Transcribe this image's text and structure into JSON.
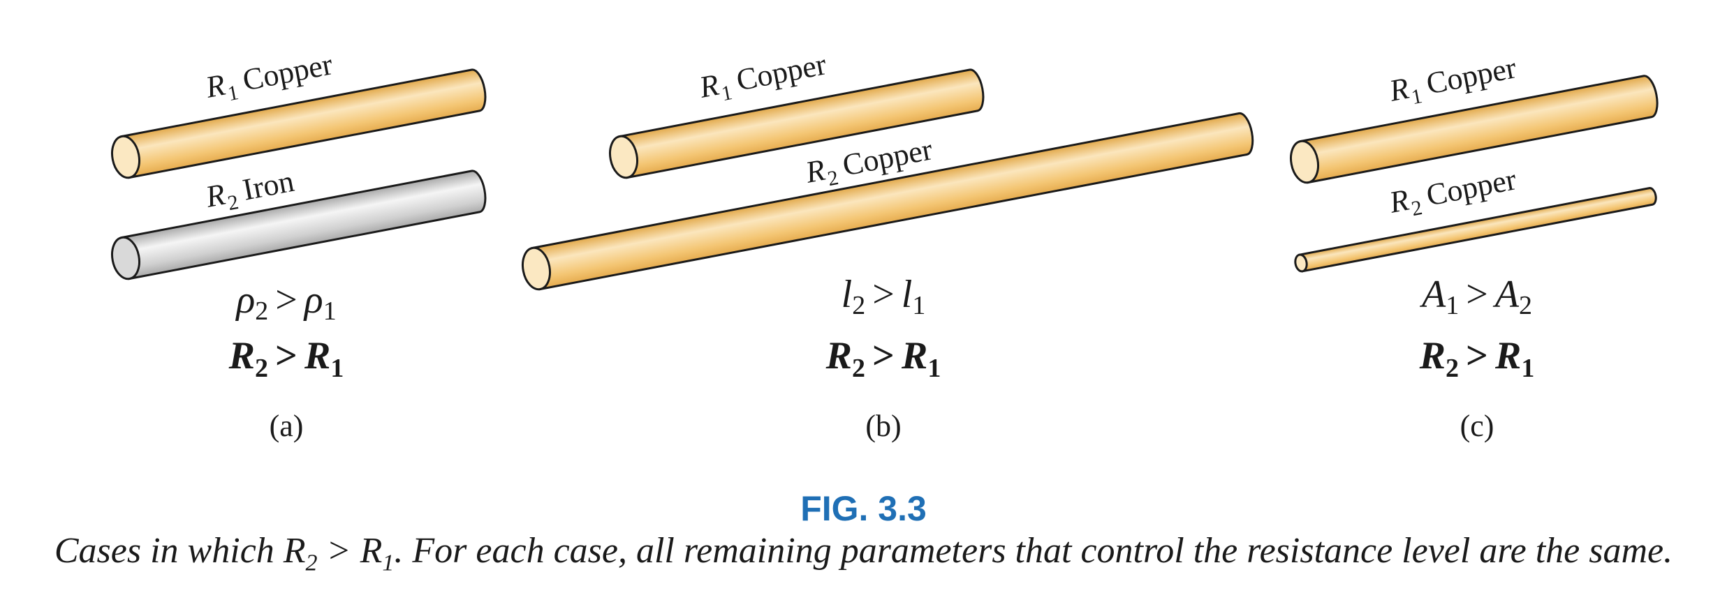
{
  "panels": [
    {
      "id": "a",
      "rod1": {
        "label_letter": "R",
        "label_sub": "1",
        "material": "Copper",
        "color": "#f2c270"
      },
      "rod2": {
        "label_letter": "R",
        "label_sub": "2",
        "material": "Iron",
        "color": "#c9c9c9"
      },
      "relation": {
        "left": "ρ",
        "left_sub": "2",
        "op": ">",
        "right": "ρ",
        "right_sub": "1"
      },
      "result": {
        "left": "R",
        "left_sub": "2",
        "op": ">",
        "right": "R",
        "right_sub": "1"
      },
      "tag": "(a)"
    },
    {
      "id": "b",
      "rod1": {
        "label_letter": "R",
        "label_sub": "1",
        "material": "Copper",
        "color": "#f2c270"
      },
      "rod2": {
        "label_letter": "R",
        "label_sub": "2",
        "material": "Copper",
        "color": "#f2c270"
      },
      "relation": {
        "left": "l",
        "left_sub": "2",
        "op": ">",
        "right": "l",
        "right_sub": "1"
      },
      "result": {
        "left": "R",
        "left_sub": "2",
        "op": ">",
        "right": "R",
        "right_sub": "1"
      },
      "tag": "(b)"
    },
    {
      "id": "c",
      "rod1": {
        "label_letter": "R",
        "label_sub": "1",
        "material": "Copper",
        "color": "#f2c270"
      },
      "rod2": {
        "label_letter": "R",
        "label_sub": "2",
        "material": "Copper",
        "color": "#f2c270"
      },
      "relation": {
        "left": "A",
        "left_sub": "1",
        "op": ">",
        "right": "A",
        "right_sub": "2"
      },
      "result": {
        "left": "R",
        "left_sub": "2",
        "op": ">",
        "right": "R",
        "right_sub": "1"
      },
      "tag": "(c)"
    }
  ],
  "figure": {
    "label": "FIG. 3.3",
    "caption_pre": "Cases in which R",
    "caption_sub1": "2",
    "caption_mid": " > R",
    "caption_sub2": "1",
    "caption_post": ". For each case, all remaining parameters that control the resistance level are the same."
  }
}
